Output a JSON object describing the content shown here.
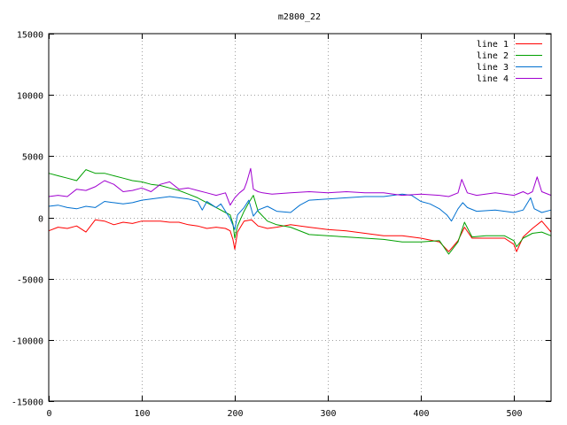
{
  "chart_data": {
    "type": "line",
    "title": "m2800_22",
    "xlabel": "",
    "ylabel": "",
    "xlim": [
      0,
      540
    ],
    "ylim": [
      -15000,
      15000
    ],
    "x_ticks": [
      0,
      100,
      200,
      300,
      400,
      500
    ],
    "y_ticks": [
      -15000,
      -10000,
      -5000,
      0,
      5000,
      10000,
      15000
    ],
    "grid": true,
    "legend_position": "top-right",
    "series": [
      {
        "name": "line 1",
        "color": "#ff0000",
        "x": [
          0,
          10,
          20,
          30,
          40,
          50,
          60,
          70,
          80,
          90,
          100,
          110,
          120,
          130,
          140,
          150,
          160,
          170,
          180,
          190,
          195,
          198,
          200,
          203,
          210,
          218,
          225,
          235,
          245,
          260,
          280,
          300,
          320,
          340,
          360,
          380,
          400,
          420,
          430,
          440,
          447,
          455,
          470,
          490,
          500,
          503,
          510,
          520,
          530,
          540
        ],
        "y": [
          -1100,
          -800,
          -900,
          -700,
          -1200,
          -200,
          -300,
          -600,
          -400,
          -500,
          -300,
          -300,
          -300,
          -400,
          -400,
          -600,
          -700,
          -900,
          -800,
          -900,
          -1100,
          -1800,
          -2600,
          -1200,
          -300,
          -200,
          -700,
          -900,
          -800,
          -600,
          -800,
          -1000,
          -1100,
          -1300,
          -1500,
          -1500,
          -1700,
          -2000,
          -2800,
          -1900,
          -800,
          -1700,
          -1700,
          -1700,
          -2200,
          -2800,
          -1600,
          -900,
          -300,
          -1200
        ]
      },
      {
        "name": "line 2",
        "color": "#00a000",
        "x": [
          0,
          10,
          20,
          30,
          40,
          50,
          60,
          70,
          80,
          90,
          100,
          110,
          120,
          130,
          140,
          150,
          160,
          170,
          180,
          190,
          195,
          198,
          200,
          203,
          210,
          215,
          220,
          225,
          235,
          245,
          260,
          280,
          300,
          320,
          340,
          360,
          380,
          400,
          420,
          430,
          440,
          447,
          455,
          470,
          490,
          500,
          503,
          510,
          520,
          530,
          540
        ],
        "y": [
          3600,
          3400,
          3200,
          3000,
          3900,
          3600,
          3600,
          3400,
          3200,
          3000,
          2900,
          2700,
          2600,
          2400,
          2200,
          1900,
          1600,
          1200,
          800,
          400,
          200,
          -500,
          -1700,
          -700,
          500,
          1200,
          1800,
          500,
          -300,
          -600,
          -800,
          -1400,
          -1500,
          -1600,
          -1700,
          -1800,
          -2000,
          -2000,
          -1900,
          -3000,
          -2000,
          -400,
          -1600,
          -1500,
          -1500,
          -1900,
          -2400,
          -1700,
          -1300,
          -1200,
          -1500
        ]
      },
      {
        "name": "line 3",
        "color": "#0070d0",
        "x": [
          0,
          10,
          20,
          30,
          40,
          50,
          60,
          70,
          80,
          90,
          100,
          110,
          120,
          130,
          140,
          150,
          160,
          165,
          170,
          180,
          185,
          190,
          195,
          200,
          203,
          210,
          215,
          220,
          225,
          235,
          245,
          260,
          270,
          280,
          300,
          320,
          340,
          360,
          380,
          390,
          400,
          410,
          420,
          428,
          433,
          440,
          445,
          450,
          460,
          480,
          500,
          510,
          518,
          522,
          530,
          540
        ],
        "y": [
          900,
          1000,
          800,
          700,
          900,
          800,
          1300,
          1200,
          1100,
          1200,
          1400,
          1500,
          1600,
          1700,
          1600,
          1500,
          1300,
          600,
          1300,
          800,
          1100,
          500,
          -100,
          -1000,
          200,
          800,
          1400,
          100,
          600,
          900,
          500,
          400,
          1000,
          1400,
          1500,
          1600,
          1700,
          1700,
          1900,
          1800,
          1300,
          1100,
          700,
          200,
          -300,
          700,
          1200,
          800,
          500,
          600,
          400,
          600,
          1600,
          700,
          400,
          600
        ]
      },
      {
        "name": "line 4",
        "color": "#a000d0",
        "x": [
          0,
          10,
          20,
          30,
          40,
          50,
          60,
          70,
          80,
          90,
          100,
          110,
          120,
          130,
          140,
          150,
          160,
          170,
          180,
          190,
          195,
          200,
          205,
          210,
          213,
          217,
          220,
          225,
          230,
          240,
          260,
          280,
          300,
          320,
          340,
          360,
          380,
          400,
          420,
          430,
          440,
          444,
          450,
          460,
          480,
          500,
          510,
          515,
          520,
          525,
          530,
          540
        ],
        "y": [
          1700,
          1800,
          1700,
          2300,
          2200,
          2500,
          3000,
          2700,
          2100,
          2200,
          2400,
          2100,
          2700,
          2900,
          2300,
          2400,
          2200,
          2000,
          1800,
          2000,
          1000,
          1600,
          2000,
          2300,
          2900,
          4000,
          2300,
          2100,
          2000,
          1900,
          2000,
          2100,
          2000,
          2100,
          2000,
          2000,
          1800,
          1900,
          1800,
          1700,
          2000,
          3100,
          2000,
          1800,
          2000,
          1800,
          2100,
          1900,
          2100,
          3300,
          2100,
          1800
        ]
      }
    ]
  }
}
